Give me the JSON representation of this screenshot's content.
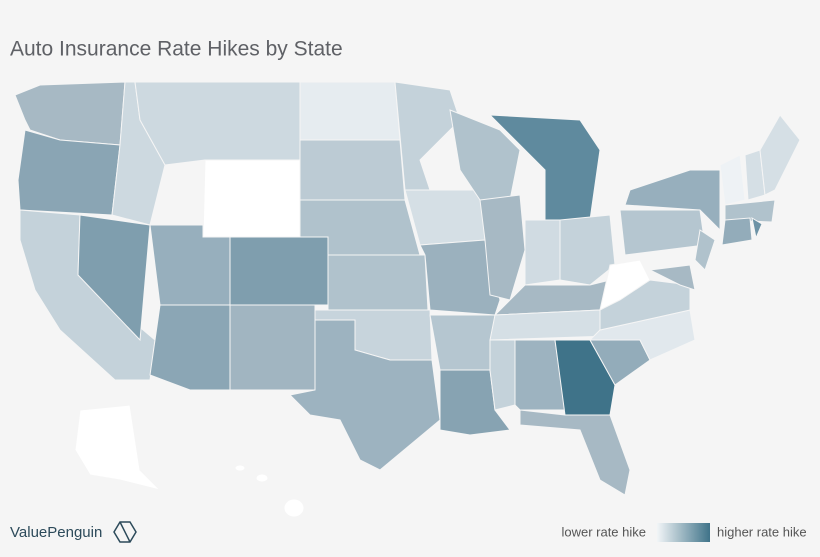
{
  "title": "Auto Insurance Rate Hikes by State",
  "brand": "ValuePenguin",
  "legend": {
    "low_label": "lower rate hike",
    "high_label": "higher rate hike",
    "low_color": "#f2f5f7",
    "high_color": "#3f7389"
  }
}
